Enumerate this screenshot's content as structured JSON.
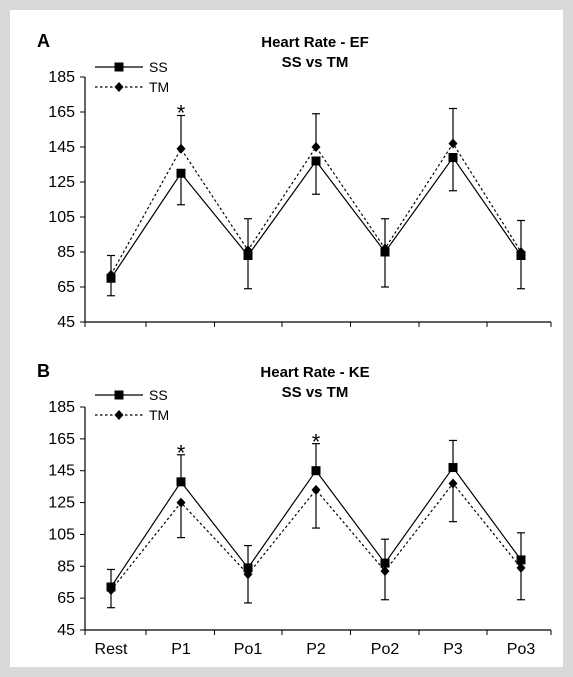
{
  "chart_data": [
    {
      "type": "line",
      "panel": "A",
      "title": "Heart Rate - EF",
      "subtitle": "SS vs TM",
      "categories": [
        "Rest",
        "P1",
        "Po1",
        "P2",
        "Po2",
        "P3",
        "Po3"
      ],
      "ylim": [
        45,
        185
      ],
      "yticks": [
        45,
        65,
        85,
        105,
        125,
        145,
        165,
        185
      ],
      "show_x_tick_labels": false,
      "legend_position": "top-left",
      "series": [
        {
          "name": "SS",
          "marker": "square",
          "line": "solid",
          "values": [
            70,
            130,
            83,
            137,
            85,
            139,
            83
          ],
          "err_low": [
            60,
            112,
            64,
            118,
            65,
            120,
            64
          ],
          "err_high": null
        },
        {
          "name": "TM",
          "marker": "diamond",
          "line": "dotted",
          "values": [
            72,
            144,
            86,
            145,
            87,
            147,
            85
          ],
          "err_low": null,
          "err_high": [
            83,
            163,
            104,
            164,
            104,
            167,
            103
          ]
        }
      ],
      "annotations": [
        {
          "category": "P1",
          "text": "*",
          "y": 167
        }
      ]
    },
    {
      "type": "line",
      "panel": "B",
      "title": "Heart Rate - KE",
      "subtitle": "SS vs TM",
      "categories": [
        "Rest",
        "P1",
        "Po1",
        "P2",
        "Po2",
        "P3",
        "Po3"
      ],
      "ylim": [
        45,
        185
      ],
      "yticks": [
        45,
        65,
        85,
        105,
        125,
        145,
        165,
        185
      ],
      "show_x_tick_labels": true,
      "legend_position": "top-left",
      "series": [
        {
          "name": "SS",
          "marker": "square",
          "line": "solid",
          "values": [
            72,
            138,
            84,
            145,
            87,
            147,
            89
          ],
          "err_low": null,
          "err_high": [
            83,
            155,
            98,
            162,
            102,
            164,
            106
          ]
        },
        {
          "name": "TM",
          "marker": "diamond",
          "line": "dotted",
          "values": [
            70,
            125,
            80,
            133,
            82,
            137,
            84
          ],
          "err_low": [
            59,
            103,
            62,
            109,
            64,
            113,
            64
          ],
          "err_high": null
        }
      ],
      "annotations": [
        {
          "category": "P1",
          "text": "*",
          "y": 159
        },
        {
          "category": "P2",
          "text": "*",
          "y": 166
        }
      ]
    }
  ]
}
